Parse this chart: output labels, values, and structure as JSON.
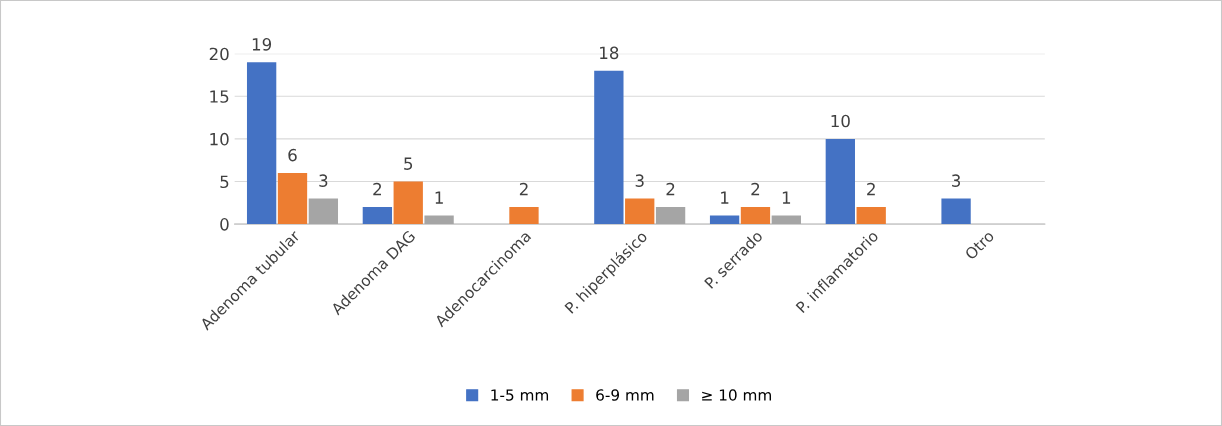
{
  "chart_data": {
    "type": "bar",
    "categories": [
      "Adenoma tubular",
      "Adenoma DAG",
      "Adenocarcinoma",
      "P. hiperplásico",
      "P. serrado",
      "P. inflamatorio",
      "Otro"
    ],
    "series": [
      {
        "name": "1-5 mm",
        "color": "#4472c4",
        "values": [
          19,
          2,
          null,
          18,
          1,
          10,
          3
        ]
      },
      {
        "name": "6-9 mm",
        "color": "#ed7d31",
        "values": [
          6,
          5,
          2,
          3,
          2,
          2,
          null
        ]
      },
      {
        "name": "≥ 10 mm",
        "color": "#a5a5a5",
        "values": [
          3,
          1,
          null,
          2,
          1,
          null,
          null
        ]
      }
    ],
    "ylim": [
      0,
      20
    ],
    "yticks": [
      0,
      5,
      10,
      15,
      20
    ],
    "grid": "y",
    "legend": "bottom",
    "data_labels": true
  }
}
